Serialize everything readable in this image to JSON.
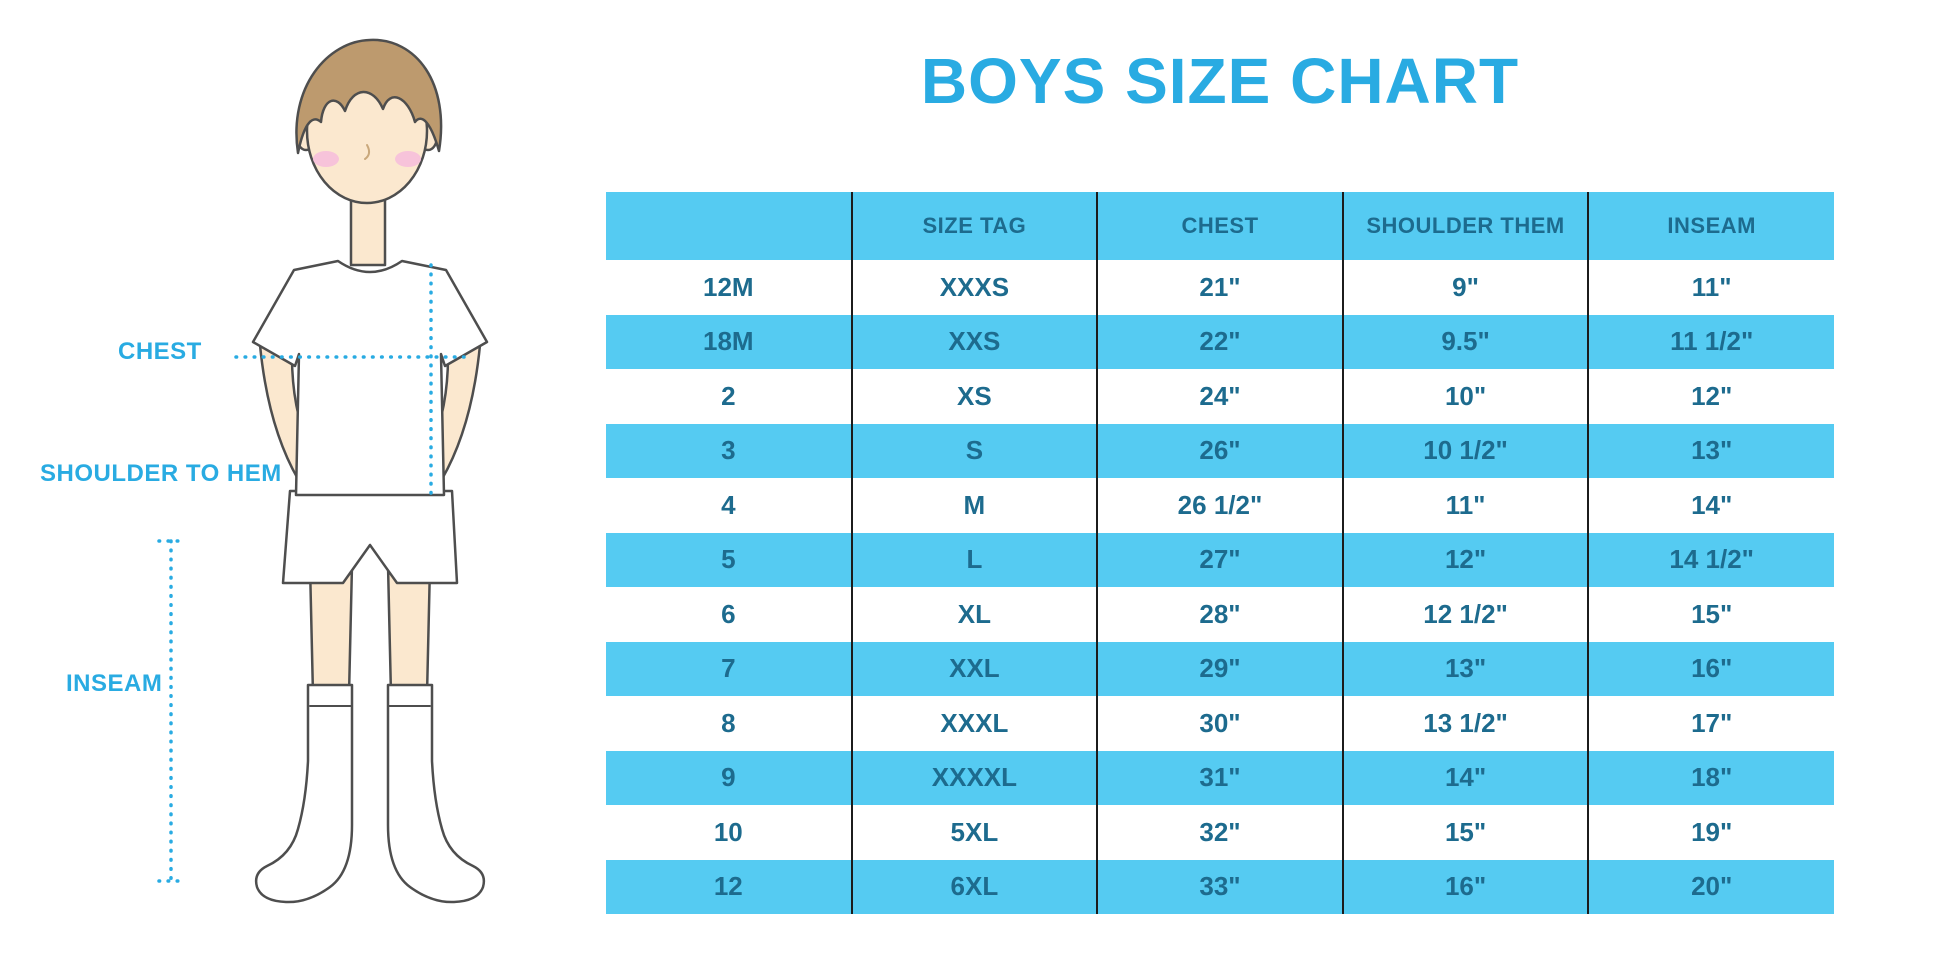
{
  "title": "BOYS SIZE CHART",
  "figure": {
    "labels": {
      "chest": "CHEST",
      "shoulder_to_hem": "SHOULDER TO HEM",
      "inseam": "INSEAM"
    }
  },
  "colors": {
    "accent_blue": "#29ABE2",
    "row_cyan": "#55CBF2",
    "table_text": "#1D6B8E",
    "column_divider": "#1c1c1c"
  },
  "chart_data": {
    "type": "table",
    "title": "BOYS SIZE CHART",
    "columns": [
      "",
      "SIZE TAG",
      "CHEST",
      "SHOULDER THEM",
      "INSEAM"
    ],
    "rows": [
      [
        "12M",
        "XXXS",
        "21\"",
        "9\"",
        "11\""
      ],
      [
        "18M",
        "XXS",
        "22\"",
        "9.5\"",
        "11 1/2\""
      ],
      [
        "2",
        "XS",
        "24\"",
        "10\"",
        "12\""
      ],
      [
        "3",
        "S",
        "26\"",
        "10 1/2\"",
        "13\""
      ],
      [
        "4",
        "M",
        "26 1/2\"",
        "11\"",
        "14\""
      ],
      [
        "5",
        "L",
        "27\"",
        "12\"",
        "14 1/2\""
      ],
      [
        "6",
        "XL",
        "28\"",
        "12 1/2\"",
        "15\""
      ],
      [
        "7",
        "XXL",
        "29\"",
        "13\"",
        "16\""
      ],
      [
        "8",
        "XXXL",
        "30\"",
        "13 1/2\"",
        "17\""
      ],
      [
        "9",
        "XXXXL",
        "31\"",
        "14\"",
        "18\""
      ],
      [
        "10",
        "5XL",
        "32\"",
        "15\"",
        "19\""
      ],
      [
        "12",
        "6XL",
        "33\"",
        "16\"",
        "20\""
      ]
    ],
    "layout": {
      "header_background": "cyan",
      "row_alternation": "white/cyan starting white",
      "column_separators": true,
      "grid": "vertical-only"
    }
  }
}
